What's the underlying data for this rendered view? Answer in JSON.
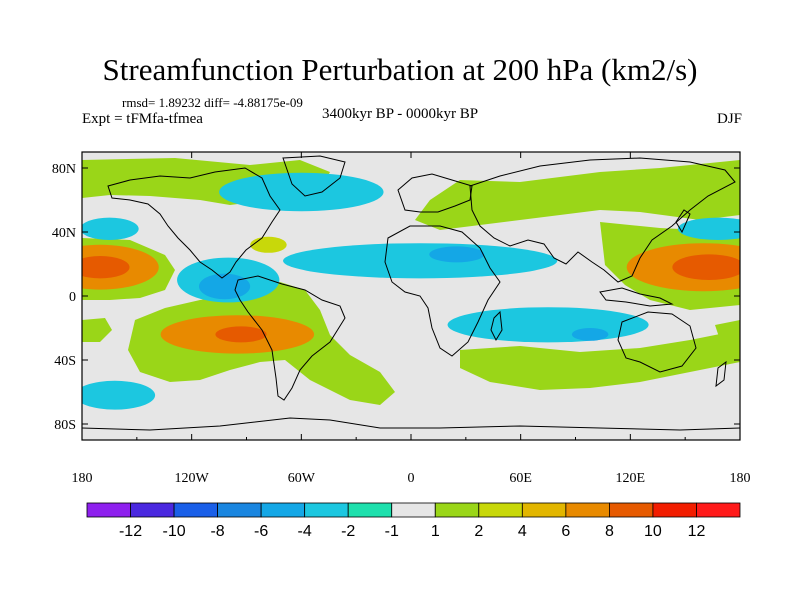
{
  "chart_data": {
    "type": "heatmap",
    "title": "Streamfunction Perturbation at 200 hPa (km2/s)",
    "stats_line": "rmsd= 1.89232 diff= -4.88175e-09",
    "expt_label": "Expt = tFMfa-tfmea",
    "period": "3400kyr BP - 0000kyr BP",
    "season": "DJF",
    "x_ticks": [
      "180",
      "120W",
      "60W",
      "0",
      "60E",
      "120E",
      "180"
    ],
    "x_tick_values": [
      -180,
      -120,
      -60,
      0,
      60,
      120,
      180
    ],
    "y_ticks": [
      "80N",
      "40N",
      "0",
      "40S",
      "80S"
    ],
    "y_tick_values": [
      80,
      40,
      0,
      -40,
      -80
    ],
    "xlim": [
      -180,
      180
    ],
    "ylim": [
      -90,
      90
    ],
    "colorbar": {
      "levels": [
        "-12",
        "-10",
        "-8",
        "-6",
        "-4",
        "-2",
        "-1",
        "1",
        "2",
        "4",
        "6",
        "8",
        "10",
        "12"
      ],
      "colors": [
        "#8e20ee",
        "#4a28df",
        "#1a5fe8",
        "#1a86e0",
        "#14a7e6",
        "#1cc7e0",
        "#1ee0ad",
        "#e6e6e6",
        "#9ad618",
        "#c8d80a",
        "#e2b600",
        "#e88a00",
        "#e65a00",
        "#f21d00",
        "#ff1a1a"
      ]
    },
    "blobs": [
      {
        "lon": -170,
        "lat": 18,
        "rlon": 32,
        "rlat": 14,
        "value": 7
      },
      {
        "lon": -170,
        "lat": 18,
        "rlon": 16,
        "rlat": 7,
        "value": 9
      },
      {
        "lon": 160,
        "lat": 18,
        "rlon": 42,
        "rlat": 15,
        "value": 7
      },
      {
        "lon": 163,
        "lat": 18,
        "rlon": 20,
        "rlat": 8,
        "value": 9
      },
      {
        "lon": -95,
        "lat": -24,
        "rlon": 42,
        "rlat": 12,
        "value": 7
      },
      {
        "lon": -93,
        "lat": -24,
        "rlon": 14,
        "rlat": 5,
        "value": 9
      },
      {
        "lon": -100,
        "lat": 10,
        "rlon": 28,
        "rlat": 14,
        "value": -3
      },
      {
        "lon": -102,
        "lat": 6,
        "rlon": 14,
        "rlat": 8,
        "value": -5
      },
      {
        "lon": 5,
        "lat": 22,
        "rlon": 75,
        "rlat": 11,
        "value": -3
      },
      {
        "lon": 25,
        "lat": 26,
        "rlon": 15,
        "rlat": 5,
        "value": -5
      },
      {
        "lon": -60,
        "lat": 65,
        "rlon": 45,
        "rlat": 12,
        "value": -3
      },
      {
        "lon": 75,
        "lat": -18,
        "rlon": 55,
        "rlat": 11,
        "value": -3
      },
      {
        "lon": 98,
        "lat": -24,
        "rlon": 10,
        "rlat": 4,
        "value": -5
      },
      {
        "lon": -165,
        "lat": 42,
        "rlon": 16,
        "rlat": 7,
        "value": -3
      },
      {
        "lon": 168,
        "lat": 42,
        "rlon": 22,
        "rlat": 7,
        "value": -3
      },
      {
        "lon": -162,
        "lat": -62,
        "rlon": 22,
        "rlat": 9,
        "value": -3
      },
      {
        "lon": -78,
        "lat": 32,
        "rlon": 10,
        "rlat": 5,
        "value": 3
      }
    ]
  }
}
